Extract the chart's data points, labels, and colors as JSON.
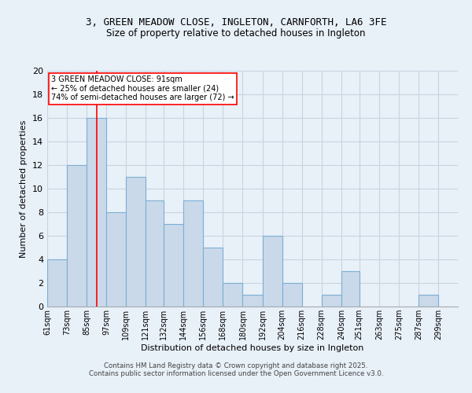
{
  "title1": "3, GREEN MEADOW CLOSE, INGLETON, CARNFORTH, LA6 3FE",
  "title2": "Size of property relative to detached houses in Ingleton",
  "xlabel": "Distribution of detached houses by size in Ingleton",
  "ylabel": "Number of detached properties",
  "bin_labels": [
    "61sqm",
    "73sqm",
    "85sqm",
    "97sqm",
    "109sqm",
    "121sqm",
    "132sqm",
    "144sqm",
    "156sqm",
    "168sqm",
    "180sqm",
    "192sqm",
    "204sqm",
    "216sqm",
    "228sqm",
    "240sqm",
    "251sqm",
    "263sqm",
    "275sqm",
    "287sqm",
    "299sqm"
  ],
  "bar_values": [
    4,
    12,
    16,
    8,
    11,
    9,
    7,
    9,
    5,
    2,
    1,
    6,
    2,
    0,
    1,
    3,
    0,
    0,
    0,
    1,
    0
  ],
  "bar_color": "#c9d9ea",
  "bar_edge_color": "#7bafd4",
  "bin_edges": [
    61,
    73,
    85,
    97,
    109,
    121,
    132,
    144,
    156,
    168,
    180,
    192,
    204,
    216,
    228,
    240,
    251,
    263,
    275,
    287,
    299
  ],
  "red_line_x": 91,
  "annotation_text_line1": "3 GREEN MEADOW CLOSE: 91sqm",
  "annotation_text_line2": "← 25% of detached houses are smaller (24)",
  "annotation_text_line3": "74% of semi-detached houses are larger (72) →",
  "footnote1": "Contains HM Land Registry data © Crown copyright and database right 2025.",
  "footnote2": "Contains public sector information licensed under the Open Government Licence v3.0.",
  "ylim": [
    0,
    20
  ],
  "yticks": [
    0,
    2,
    4,
    6,
    8,
    10,
    12,
    14,
    16,
    18,
    20
  ],
  "grid_color": "#c8d4e0",
  "bg_color": "#e8f0f8",
  "fig_bg_color": "#e8f0f8"
}
